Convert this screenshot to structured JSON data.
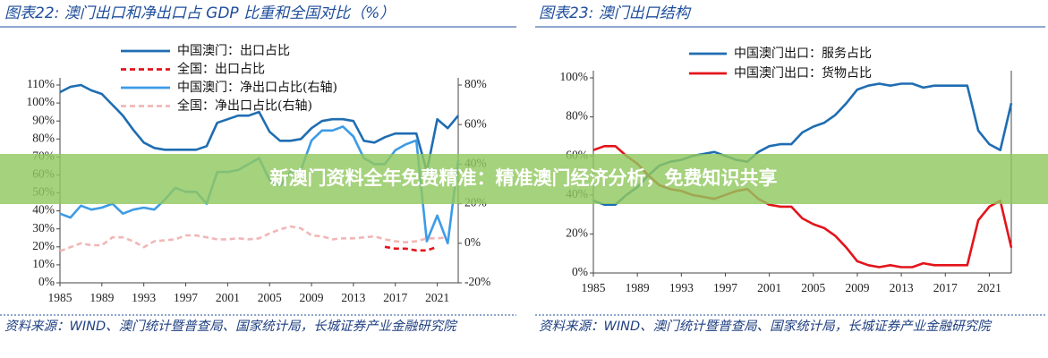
{
  "banner": "新澳门资料全年免费精准：精准澳门经济分析，免费知识共享",
  "chart_data": [
    {
      "type": "line",
      "title": "图表22:  澳门出口和净出口占 GDP 比重和全国对比（%）",
      "source": "资料来源：WIND、澳门统计暨普查局、国家统计局，长城证券产业金融研究院",
      "x": [
        1985,
        1986,
        1987,
        1988,
        1989,
        1990,
        1991,
        1992,
        1993,
        1994,
        1995,
        1996,
        1997,
        1998,
        1999,
        2000,
        2001,
        2002,
        2003,
        2004,
        2005,
        2006,
        2007,
        2008,
        2009,
        2010,
        2011,
        2012,
        2013,
        2014,
        2015,
        2016,
        2017,
        2018,
        2019,
        2020,
        2021,
        2022,
        2023
      ],
      "xlim": [
        1985,
        2023
      ],
      "xticks": [
        1985,
        1989,
        1993,
        1997,
        2001,
        2005,
        2009,
        2013,
        2017,
        2021
      ],
      "ylim": [
        0,
        110
      ],
      "yticks": [
        {
          "value": 0,
          "label": "0%"
        },
        {
          "value": 10,
          "label": "10%"
        },
        {
          "value": 20,
          "label": "20%"
        },
        {
          "value": 30,
          "label": "30%"
        },
        {
          "value": 40,
          "label": "40%"
        },
        {
          "value": 50,
          "label": "50%"
        },
        {
          "value": 60,
          "label": "60%"
        },
        {
          "value": 70,
          "label": "70%"
        },
        {
          "value": 80,
          "label": "80%"
        },
        {
          "value": 90,
          "label": "90%"
        },
        {
          "value": 100,
          "label": "100%"
        },
        {
          "value": 110,
          "label": "110%"
        }
      ],
      "y2lim": [
        -20,
        80
      ],
      "y2ticks": [
        {
          "value": -20,
          "label": "-20%"
        },
        {
          "value": 0,
          "label": "0%"
        },
        {
          "value": 20,
          "label": "20%"
        },
        {
          "value": 40,
          "label": "40%"
        },
        {
          "value": 60,
          "label": "60%"
        },
        {
          "value": 80,
          "label": "80%"
        }
      ],
      "series": [
        {
          "name": "中国澳门：出口占比",
          "color": "#1f6db2",
          "line_style": "solid",
          "values": [
            106,
            109,
            110,
            107,
            105,
            99,
            93,
            85,
            78,
            75,
            74,
            74,
            74,
            74,
            76,
            89,
            91,
            93,
            93,
            95,
            84,
            79,
            79,
            80,
            86,
            90,
            91,
            91,
            90,
            79,
            78,
            81,
            83,
            83,
            83,
            62,
            91,
            86,
            93
          ]
        },
        {
          "name": "全国：出口占比",
          "color": "#e3141b",
          "line_style": "dashed",
          "values": [
            null,
            null,
            null,
            null,
            null,
            null,
            null,
            null,
            null,
            null,
            null,
            null,
            null,
            null,
            null,
            null,
            null,
            null,
            null,
            null,
            null,
            null,
            null,
            null,
            null,
            null,
            null,
            null,
            null,
            null,
            null,
            20,
            19,
            19,
            18,
            18,
            20,
            null,
            null
          ]
        },
        {
          "name": "中国澳门：净出口占比(右轴)",
          "color": "#3d9be6",
          "line_style": "solid",
          "axis": "y2",
          "values": [
            15,
            13,
            19,
            17,
            18,
            20,
            15,
            17,
            18,
            17,
            22,
            28,
            26,
            26,
            20,
            36,
            36,
            37,
            40,
            43,
            32,
            29,
            36,
            37,
            52,
            57,
            57,
            59,
            54,
            43,
            40,
            40,
            47,
            50,
            52,
            1,
            14,
            0,
            42
          ]
        },
        {
          "name": "全国：净出口占比(右轴)",
          "color": "#f2b6b6",
          "line_style": "dashed",
          "axis": "y2",
          "values": [
            -4,
            -2,
            0,
            -1,
            -1,
            3,
            3,
            1,
            -2,
            1,
            1.5,
            2,
            4,
            4,
            3,
            2,
            2,
            2.5,
            2,
            2.5,
            5,
            7,
            8.5,
            7.5,
            4,
            3.5,
            2,
            2.5,
            2.5,
            3,
            3.5,
            2,
            1,
            0.5,
            1,
            2.5,
            2.5,
            3,
            null
          ]
        }
      ]
    },
    {
      "type": "line",
      "title": "图表23:  澳门出口结构",
      "source": "资料来源：WIND、澳门统计暨普查局、国家统计局，长城证券产业金融研究院",
      "x": [
        1985,
        1986,
        1987,
        1988,
        1989,
        1990,
        1991,
        1992,
        1993,
        1994,
        1995,
        1996,
        1997,
        1998,
        1999,
        2000,
        2001,
        2002,
        2003,
        2004,
        2005,
        2006,
        2007,
        2008,
        2009,
        2010,
        2011,
        2012,
        2013,
        2014,
        2015,
        2016,
        2017,
        2018,
        2019,
        2020,
        2021,
        2022,
        2023
      ],
      "xlim": [
        1985,
        2023
      ],
      "xticks": [
        1985,
        1989,
        1993,
        1997,
        2001,
        2005,
        2009,
        2013,
        2017,
        2021
      ],
      "ylim": [
        0,
        100
      ],
      "yticks": [
        {
          "value": 0,
          "label": "0%"
        },
        {
          "value": 20,
          "label": "20%"
        },
        {
          "value": 40,
          "label": "40%"
        },
        {
          "value": 60,
          "label": "60%"
        },
        {
          "value": 80,
          "label": "80%"
        },
        {
          "value": 100,
          "label": "100%"
        }
      ],
      "series": [
        {
          "name": "中国澳门出口：服务占比",
          "color": "#1f6db2",
          "line_style": "solid",
          "values": [
            37,
            35,
            35,
            40,
            44,
            50,
            55,
            57,
            58,
            60,
            61,
            62,
            60,
            58,
            57,
            62,
            65,
            66,
            66,
            72,
            75,
            77,
            81,
            87,
            94,
            96,
            97,
            96,
            97,
            97,
            95,
            96,
            96,
            96,
            96,
            73,
            66,
            63,
            87
          ]
        },
        {
          "name": "中国澳门出口：货物占比",
          "color": "#e3141b",
          "line_style": "solid",
          "values": [
            63,
            65,
            65,
            60,
            56,
            50,
            45,
            43,
            42,
            40,
            39,
            38,
            40,
            42,
            43,
            38,
            35,
            34,
            34,
            28,
            25,
            23,
            19,
            13,
            6,
            4,
            3,
            4,
            3,
            3,
            5,
            4,
            4,
            4,
            4,
            27,
            34,
            37,
            13
          ]
        }
      ]
    }
  ]
}
